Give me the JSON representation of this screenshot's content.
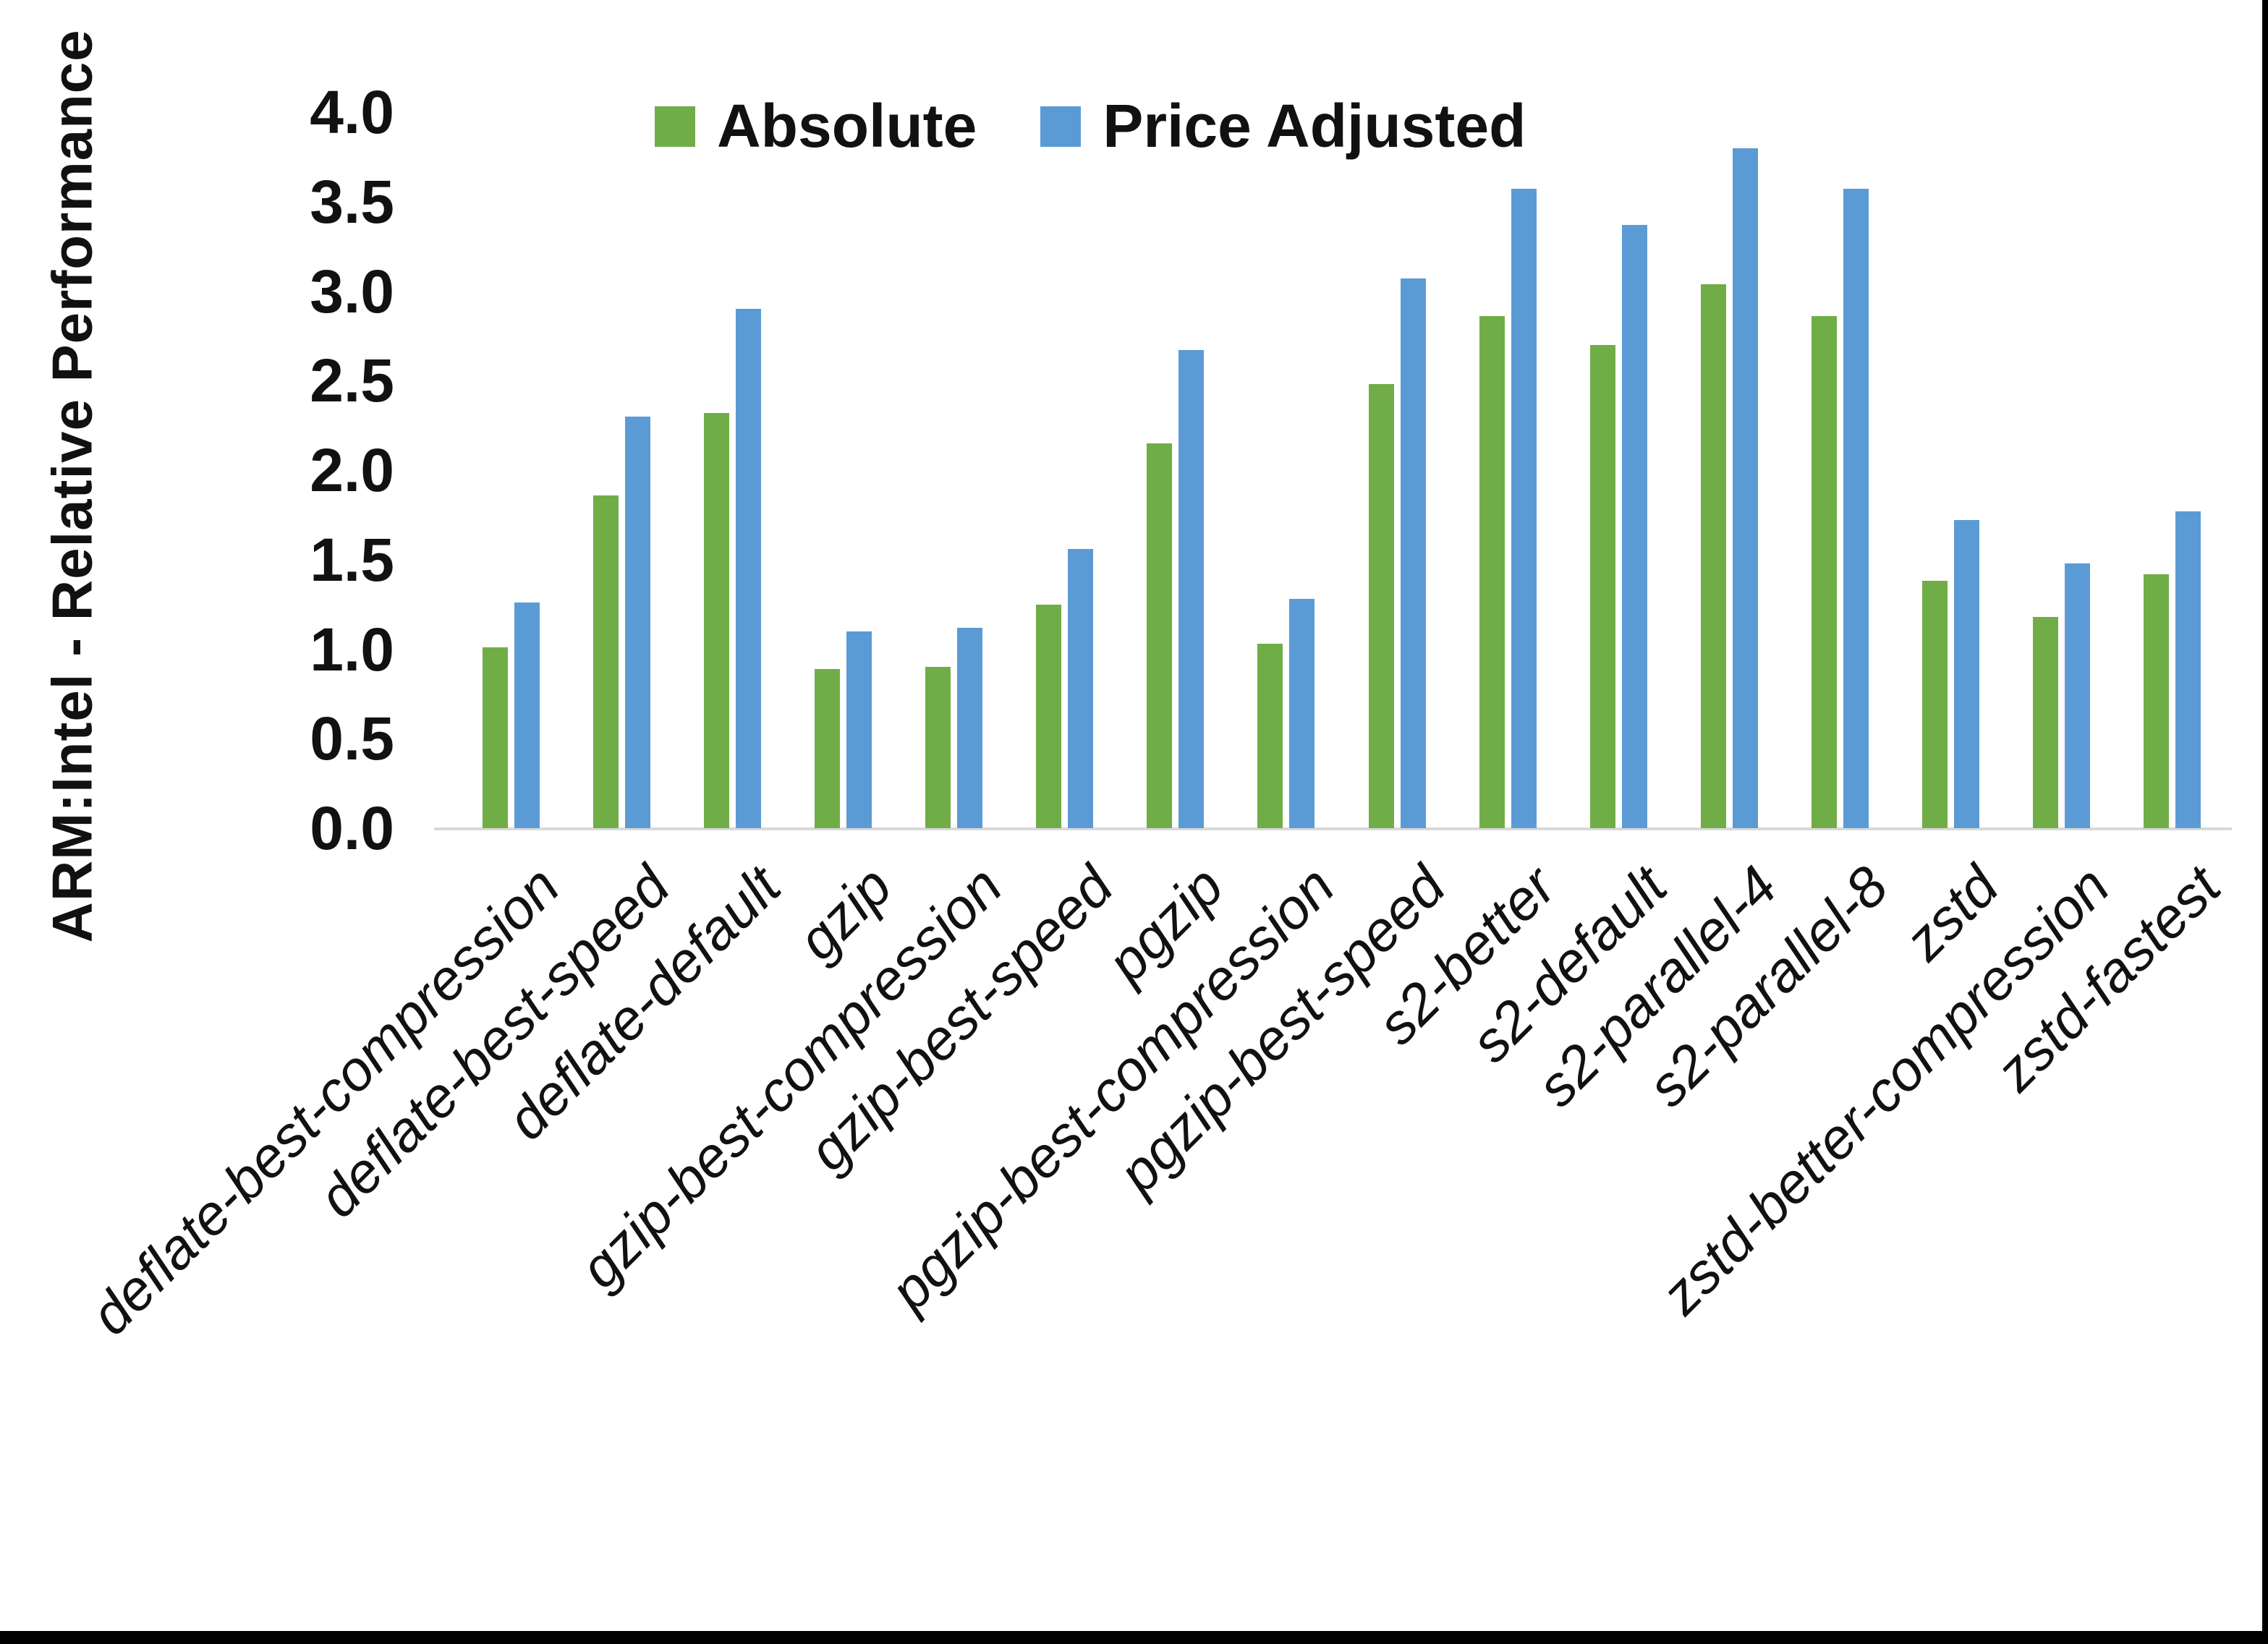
{
  "figure": {
    "background": "#ffffff",
    "border_color": "#000000",
    "axis_line_color": "#d9d9d9",
    "text_color": "#111111"
  },
  "chart_data": {
    "type": "bar",
    "title": "",
    "xlabel": "",
    "ylabel": "ARM:Intel - Relative Performance",
    "ylim": [
      0.0,
      4.0
    ],
    "ytick_step": 0.5,
    "yticks": [
      "0.0",
      "0.5",
      "1.0",
      "1.5",
      "2.0",
      "2.5",
      "3.0",
      "3.5",
      "4.0"
    ],
    "grid": false,
    "legend_position": "top-center",
    "categories": [
      "deflate-best-compression",
      "deflate-best-speed",
      "deflate-default",
      "gzip",
      "gzip-best-compression",
      "gzip-best-speed",
      "pgzip",
      "pgzip-best-compression",
      "pgzip-best-speed",
      "s2-better",
      "s2-default",
      "s2-parallel-4",
      "s2-parallel-8",
      "zstd",
      "zstd-better-compression",
      "zstd-fastest"
    ],
    "series": [
      {
        "name": "Absolute",
        "color": "#70AD47",
        "values": [
          1.01,
          1.86,
          2.32,
          0.89,
          0.9,
          1.25,
          2.15,
          1.03,
          2.48,
          2.86,
          2.7,
          3.04,
          2.86,
          1.38,
          1.18,
          1.42
        ]
      },
      {
        "name": "Price Adjusted",
        "color": "#5B9BD5",
        "values": [
          1.26,
          2.3,
          2.9,
          1.1,
          1.12,
          1.56,
          2.67,
          1.28,
          3.07,
          3.57,
          3.37,
          3.8,
          3.57,
          1.72,
          1.48,
          1.77
        ]
      }
    ]
  }
}
